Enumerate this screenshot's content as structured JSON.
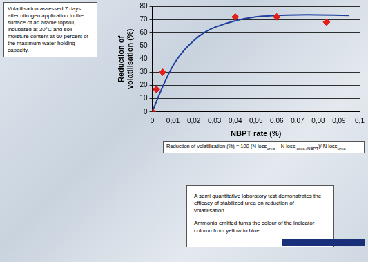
{
  "chart_data": {
    "type": "scatter",
    "x_label": "NBPT rate (%)",
    "y_label": [
      "Reduction of",
      "volatilisation (%)"
    ],
    "xlim": [
      0,
      0.1
    ],
    "xticks": [
      0,
      {
        "value": 0.01,
        "label": "0,01"
      },
      {
        "value": 0.02,
        "label": "0,02"
      },
      {
        "value": 0.03,
        "label": "0,03"
      },
      {
        "value": 0.04,
        "label": "0,04"
      },
      {
        "value": 0.05,
        "label": "0,05"
      },
      {
        "value": 0.06,
        "label": "0,06"
      },
      {
        "value": 0.07,
        "label": "0,07"
      },
      {
        "value": 0.08,
        "label": "0,08"
      },
      {
        "value": 0.09,
        "label": "0,09"
      },
      {
        "value": 0.1,
        "label": "0,1"
      }
    ],
    "ylim": [
      0,
      80
    ],
    "yticks": [
      0,
      10,
      20,
      30,
      40,
      50,
      60,
      70,
      80
    ],
    "grid": true,
    "series": [
      {
        "type": "line",
        "color": "#1f3f9f",
        "marker": "none",
        "line_style": "solid",
        "x": [
          0,
          0.005,
          0.01,
          0.015,
          0.02,
          0.025,
          0.03,
          0.04,
          0.05,
          0.06,
          0.07,
          0.08,
          0.095
        ],
        "values": [
          0,
          19,
          35,
          46,
          54,
          60,
          64,
          69,
          72,
          73,
          73.5,
          73.5,
          73
        ]
      },
      {
        "type": "scatter",
        "color": "#e0201b",
        "marker": "diamond",
        "x": [
          0,
          0.002,
          0.005,
          0.04,
          0.06,
          0.084
        ],
        "values": [
          0,
          17,
          30,
          72,
          72,
          68
        ]
      }
    ],
    "annotations": {
      "conditions": "Volatilisation assessed 7 days after nitrogen application to the surface of an arable topsoil, incubated at 30°C and soil moisture content at 60 percent of the maximum water holding capacity.",
      "formula": [
        {
          "text": "Reduction of volatilisation (%) = 100 (N loss"
        },
        {
          "sub": "urea"
        },
        {
          "text": " – N loss "
        },
        {
          "sub": "urea+NBPT"
        },
        {
          "text": ")/ N loss"
        },
        {
          "sub": "urea"
        }
      ],
      "caption": [
        "A semi quantitative laboratory test demonstrates the efficacy of stabilized urea on reduction of volatilisation.",
        "Ammonia emitted turns the colour of the indicator column from yellow to blue."
      ]
    }
  }
}
